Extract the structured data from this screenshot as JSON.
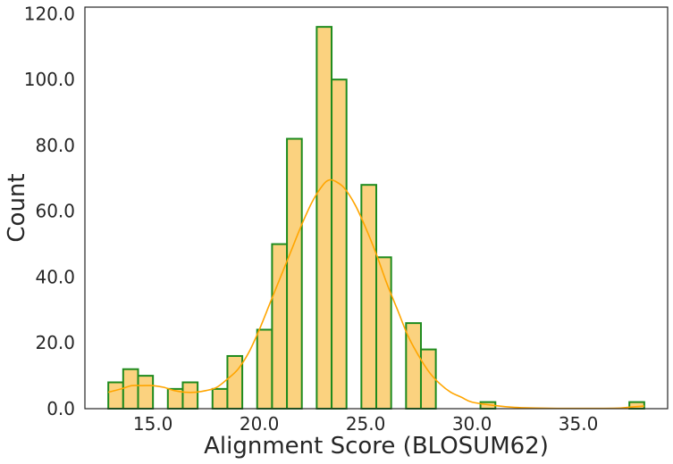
{
  "chart_data": {
    "type": "bar",
    "subtype": "histogram",
    "title": "",
    "xlabel": "Alignment Score (BLOSUM62)",
    "ylabel": "Count",
    "xlim": [
      11.8,
      39.2
    ],
    "ylim": [
      0,
      122
    ],
    "x_ticks": [
      15.0,
      20.0,
      25.0,
      30.0,
      35.0
    ],
    "x_tick_labels": [
      "15.0",
      "20.0",
      "25.0",
      "30.0",
      "35.0"
    ],
    "y_ticks": [
      0,
      20,
      40,
      60,
      80,
      100,
      120
    ],
    "y_tick_labels": [
      "0.0",
      "20.0",
      "40.0",
      "60.0",
      "80.0",
      "100.0",
      "120.0"
    ],
    "bin_width": 0.7,
    "bins": [
      {
        "x0": 12.9,
        "x1": 13.6,
        "count": 8
      },
      {
        "x0": 13.6,
        "x1": 14.3,
        "count": 12
      },
      {
        "x0": 14.3,
        "x1": 15.0,
        "count": 10
      },
      {
        "x0": 15.0,
        "x1": 15.7,
        "count": 0
      },
      {
        "x0": 15.7,
        "x1": 16.4,
        "count": 6
      },
      {
        "x0": 16.4,
        "x1": 17.1,
        "count": 8
      },
      {
        "x0": 17.1,
        "x1": 17.8,
        "count": 0
      },
      {
        "x0": 17.8,
        "x1": 18.5,
        "count": 6
      },
      {
        "x0": 18.5,
        "x1": 19.2,
        "count": 16
      },
      {
        "x0": 19.2,
        "x1": 19.9,
        "count": 0
      },
      {
        "x0": 19.9,
        "x1": 20.6,
        "count": 24
      },
      {
        "x0": 20.6,
        "x1": 21.3,
        "count": 50
      },
      {
        "x0": 21.3,
        "x1": 22.0,
        "count": 82
      },
      {
        "x0": 22.0,
        "x1": 22.7,
        "count": 0
      },
      {
        "x0": 22.7,
        "x1": 23.4,
        "count": 116
      },
      {
        "x0": 23.4,
        "x1": 24.1,
        "count": 100
      },
      {
        "x0": 24.1,
        "x1": 24.8,
        "count": 0
      },
      {
        "x0": 24.8,
        "x1": 25.5,
        "count": 68
      },
      {
        "x0": 25.5,
        "x1": 26.2,
        "count": 46
      },
      {
        "x0": 26.2,
        "x1": 26.9,
        "count": 0
      },
      {
        "x0": 26.9,
        "x1": 27.6,
        "count": 26
      },
      {
        "x0": 27.6,
        "x1": 28.3,
        "count": 18
      },
      {
        "x0": 28.3,
        "x1": 29.0,
        "count": 0
      },
      {
        "x0": 29.0,
        "x1": 29.7,
        "count": 0
      },
      {
        "x0": 29.7,
        "x1": 30.4,
        "count": 0
      },
      {
        "x0": 30.4,
        "x1": 31.1,
        "count": 2
      },
      {
        "x0": 31.1,
        "x1": 31.8,
        "count": 0
      },
      {
        "x0": 31.8,
        "x1": 32.5,
        "count": 0
      },
      {
        "x0": 32.5,
        "x1": 33.2,
        "count": 0
      },
      {
        "x0": 33.2,
        "x1": 33.9,
        "count": 0
      },
      {
        "x0": 33.9,
        "x1": 34.6,
        "count": 0
      },
      {
        "x0": 34.6,
        "x1": 35.3,
        "count": 0
      },
      {
        "x0": 35.3,
        "x1": 36.0,
        "count": 0
      },
      {
        "x0": 36.0,
        "x1": 36.7,
        "count": 0
      },
      {
        "x0": 36.7,
        "x1": 37.4,
        "count": 0
      },
      {
        "x0": 37.4,
        "x1": 38.1,
        "count": 2
      }
    ],
    "kde": {
      "x": [
        12.9,
        13.5,
        14.0,
        14.5,
        15.0,
        15.5,
        16.0,
        16.5,
        17.0,
        17.5,
        18.0,
        18.5,
        19.0,
        19.5,
        20.0,
        20.5,
        21.0,
        21.5,
        22.0,
        22.5,
        23.0,
        23.3,
        23.6,
        24.0,
        24.5,
        25.0,
        25.5,
        26.0,
        26.5,
        27.0,
        27.5,
        28.0,
        28.5,
        29.0,
        29.5,
        30.0,
        31.0,
        32.0,
        33.0,
        34.0,
        35.0,
        36.0,
        37.0,
        37.5,
        38.1
      ],
      "y": [
        5,
        6,
        7,
        7,
        7,
        6.5,
        5.5,
        5,
        5,
        5.5,
        6.5,
        9,
        12,
        17,
        24,
        32,
        40,
        48,
        56,
        63,
        68,
        69.5,
        69,
        67,
        62,
        55,
        47,
        38,
        30,
        22,
        16,
        11,
        7.5,
        5,
        3.5,
        2,
        1,
        0.4,
        0.2,
        0.1,
        0.1,
        0.1,
        0.2,
        0.5,
        0.8
      ]
    },
    "bar_fill": "#fbd27f",
    "bar_edge": "#1e8b1e",
    "kde_color": "#ffa500",
    "grid": false,
    "legend": "none"
  }
}
